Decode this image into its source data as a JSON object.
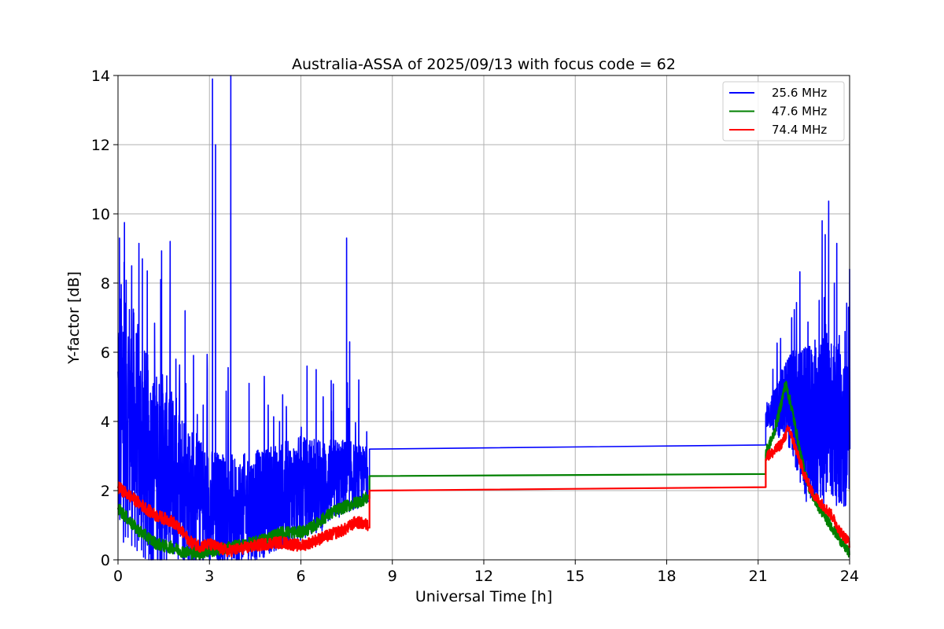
{
  "chart_data": {
    "type": "line",
    "title": "Australia-ASSA of 2025/09/13 with focus code = 62",
    "xlabel": "Universal Time [h]",
    "ylabel": "Y-factor [dB]",
    "xlim": [
      0,
      24
    ],
    "ylim": [
      0,
      14
    ],
    "xticks": [
      0,
      3,
      6,
      9,
      12,
      15,
      18,
      21,
      24
    ],
    "yticks": [
      0,
      2,
      4,
      6,
      8,
      10,
      12,
      14
    ],
    "grid": true,
    "legend_position": "top-right",
    "series": [
      {
        "name": "25.6 MHz",
        "color": "#0000ff",
        "baseline": [
          [
            0,
            3.8
          ],
          [
            0.3,
            4.0
          ],
          [
            0.6,
            3.2
          ],
          [
            0.9,
            2.6
          ],
          [
            1.2,
            2.2
          ],
          [
            1.5,
            2.4
          ],
          [
            1.8,
            2.2
          ],
          [
            2.1,
            2.0
          ],
          [
            2.4,
            1.6
          ],
          [
            2.7,
            1.4
          ],
          [
            3.0,
            1.3
          ],
          [
            3.3,
            1.3
          ],
          [
            3.6,
            1.2
          ],
          [
            3.9,
            1.2
          ],
          [
            4.2,
            1.3
          ],
          [
            4.5,
            1.4
          ],
          [
            4.8,
            1.5
          ],
          [
            5.1,
            1.6
          ],
          [
            5.4,
            1.7
          ],
          [
            5.7,
            1.8
          ],
          [
            6.0,
            1.9
          ],
          [
            6.3,
            2.0
          ],
          [
            6.6,
            2.0
          ],
          [
            6.9,
            2.1
          ],
          [
            7.2,
            2.2
          ],
          [
            7.5,
            2.3
          ],
          [
            7.8,
            2.3
          ],
          [
            8.2,
            2.4
          ]
        ],
        "spread": [
          [
            0,
            5.0
          ],
          [
            0.9,
            4.0
          ],
          [
            1.5,
            3.5
          ],
          [
            2.4,
            2.6
          ],
          [
            3.0,
            2.2
          ],
          [
            4.5,
            2.0
          ],
          [
            6.0,
            1.9
          ],
          [
            7.2,
            1.5
          ],
          [
            8.2,
            1.0
          ]
        ],
        "peaks": [
          [
            0.05,
            9.3
          ],
          [
            0.2,
            8.6
          ],
          [
            0.45,
            8.5
          ],
          [
            0.8,
            8.7
          ],
          [
            1.4,
            8.1
          ],
          [
            1.9,
            5.8
          ],
          [
            2.2,
            7.2
          ],
          [
            2.6,
            4.2
          ],
          [
            3.1,
            13.9
          ],
          [
            3.2,
            12.0
          ],
          [
            3.7,
            14.0
          ],
          [
            4.3,
            5.1
          ],
          [
            4.8,
            4.9
          ],
          [
            5.3,
            4.0
          ],
          [
            6.2,
            5.6
          ],
          [
            6.5,
            5.5
          ],
          [
            7.0,
            4.3
          ],
          [
            7.5,
            9.3
          ],
          [
            7.6,
            6.3
          ],
          [
            7.9,
            5.2
          ]
        ],
        "gap_line": [
          [
            8.25,
            3.2
          ],
          [
            21.25,
            3.32
          ]
        ],
        "night_baseline": [
          [
            21.25,
            4.1
          ],
          [
            21.5,
            4.2
          ],
          [
            21.8,
            4.4
          ],
          [
            22.0,
            4.5
          ],
          [
            22.3,
            4.0
          ],
          [
            22.6,
            3.6
          ],
          [
            23.0,
            3.8
          ],
          [
            23.3,
            3.9
          ],
          [
            23.6,
            3.6
          ],
          [
            23.9,
            3.4
          ],
          [
            24.0,
            3.5
          ]
        ],
        "night_spread": [
          [
            21.25,
            0.3
          ],
          [
            21.9,
            1.5
          ],
          [
            22.5,
            2.8
          ],
          [
            23.2,
            3.2
          ],
          [
            24.0,
            2.5
          ]
        ],
        "night_peaks": [
          [
            22.1,
            7.0
          ],
          [
            22.4,
            5.4
          ],
          [
            23.0,
            7.5
          ],
          [
            23.1,
            9.8
          ],
          [
            23.2,
            9.4
          ],
          [
            23.5,
            8.0
          ],
          [
            23.85,
            6.6
          ],
          [
            24.0,
            8.4
          ]
        ]
      },
      {
        "name": "47.6 MHz",
        "color": "#008000",
        "baseline": [
          [
            0,
            1.5
          ],
          [
            0.3,
            1.2
          ],
          [
            0.6,
            0.9
          ],
          [
            0.9,
            0.7
          ],
          [
            1.2,
            0.5
          ],
          [
            1.5,
            0.4
          ],
          [
            1.8,
            0.35
          ],
          [
            2.1,
            0.25
          ],
          [
            2.4,
            0.2
          ],
          [
            2.7,
            0.2
          ],
          [
            3.0,
            0.25
          ],
          [
            3.3,
            0.3
          ],
          [
            3.6,
            0.35
          ],
          [
            3.9,
            0.4
          ],
          [
            4.2,
            0.45
          ],
          [
            4.5,
            0.5
          ],
          [
            4.8,
            0.6
          ],
          [
            5.1,
            0.7
          ],
          [
            5.4,
            0.8
          ],
          [
            5.7,
            0.8
          ],
          [
            6.0,
            0.8
          ],
          [
            6.3,
            0.9
          ],
          [
            6.6,
            1.1
          ],
          [
            6.9,
            1.3
          ],
          [
            7.2,
            1.45
          ],
          [
            7.5,
            1.55
          ],
          [
            7.8,
            1.65
          ],
          [
            8.2,
            1.8
          ]
        ],
        "gap_line": [
          [
            8.25,
            2.42
          ],
          [
            21.25,
            2.48
          ]
        ],
        "night_baseline": [
          [
            21.25,
            3.1
          ],
          [
            21.5,
            3.6
          ],
          [
            21.7,
            4.3
          ],
          [
            21.9,
            5.1
          ],
          [
            22.1,
            4.4
          ],
          [
            22.4,
            3.0
          ],
          [
            22.7,
            2.0
          ],
          [
            23.0,
            1.5
          ],
          [
            23.3,
            1.1
          ],
          [
            23.6,
            0.7
          ],
          [
            23.9,
            0.3
          ],
          [
            24.0,
            0.2
          ]
        ]
      },
      {
        "name": "74.4 MHz",
        "color": "#ff0000",
        "baseline": [
          [
            0,
            2.1
          ],
          [
            0.3,
            1.9
          ],
          [
            0.6,
            1.7
          ],
          [
            0.9,
            1.5
          ],
          [
            1.2,
            1.3
          ],
          [
            1.5,
            1.2
          ],
          [
            1.8,
            1.1
          ],
          [
            2.1,
            0.8
          ],
          [
            2.4,
            0.5
          ],
          [
            2.7,
            0.4
          ],
          [
            3.0,
            0.45
          ],
          [
            3.3,
            0.35
          ],
          [
            3.6,
            0.25
          ],
          [
            3.9,
            0.3
          ],
          [
            4.2,
            0.35
          ],
          [
            4.5,
            0.4
          ],
          [
            4.8,
            0.45
          ],
          [
            5.1,
            0.5
          ],
          [
            5.4,
            0.5
          ],
          [
            5.7,
            0.45
          ],
          [
            6.0,
            0.4
          ],
          [
            6.3,
            0.5
          ],
          [
            6.6,
            0.6
          ],
          [
            6.9,
            0.7
          ],
          [
            7.2,
            0.8
          ],
          [
            7.5,
            0.9
          ],
          [
            7.8,
            1.1
          ],
          [
            8.2,
            1.0
          ]
        ],
        "gap_line": [
          [
            8.25,
            2.0
          ],
          [
            21.25,
            2.1
          ]
        ],
        "night_baseline": [
          [
            21.25,
            3.0
          ],
          [
            21.5,
            3.1
          ],
          [
            21.8,
            3.4
          ],
          [
            22.0,
            3.8
          ],
          [
            22.2,
            3.3
          ],
          [
            22.5,
            2.5
          ],
          [
            22.8,
            1.9
          ],
          [
            23.1,
            1.6
          ],
          [
            23.4,
            1.3
          ],
          [
            23.7,
            0.8
          ],
          [
            24.0,
            0.5
          ]
        ]
      }
    ]
  }
}
